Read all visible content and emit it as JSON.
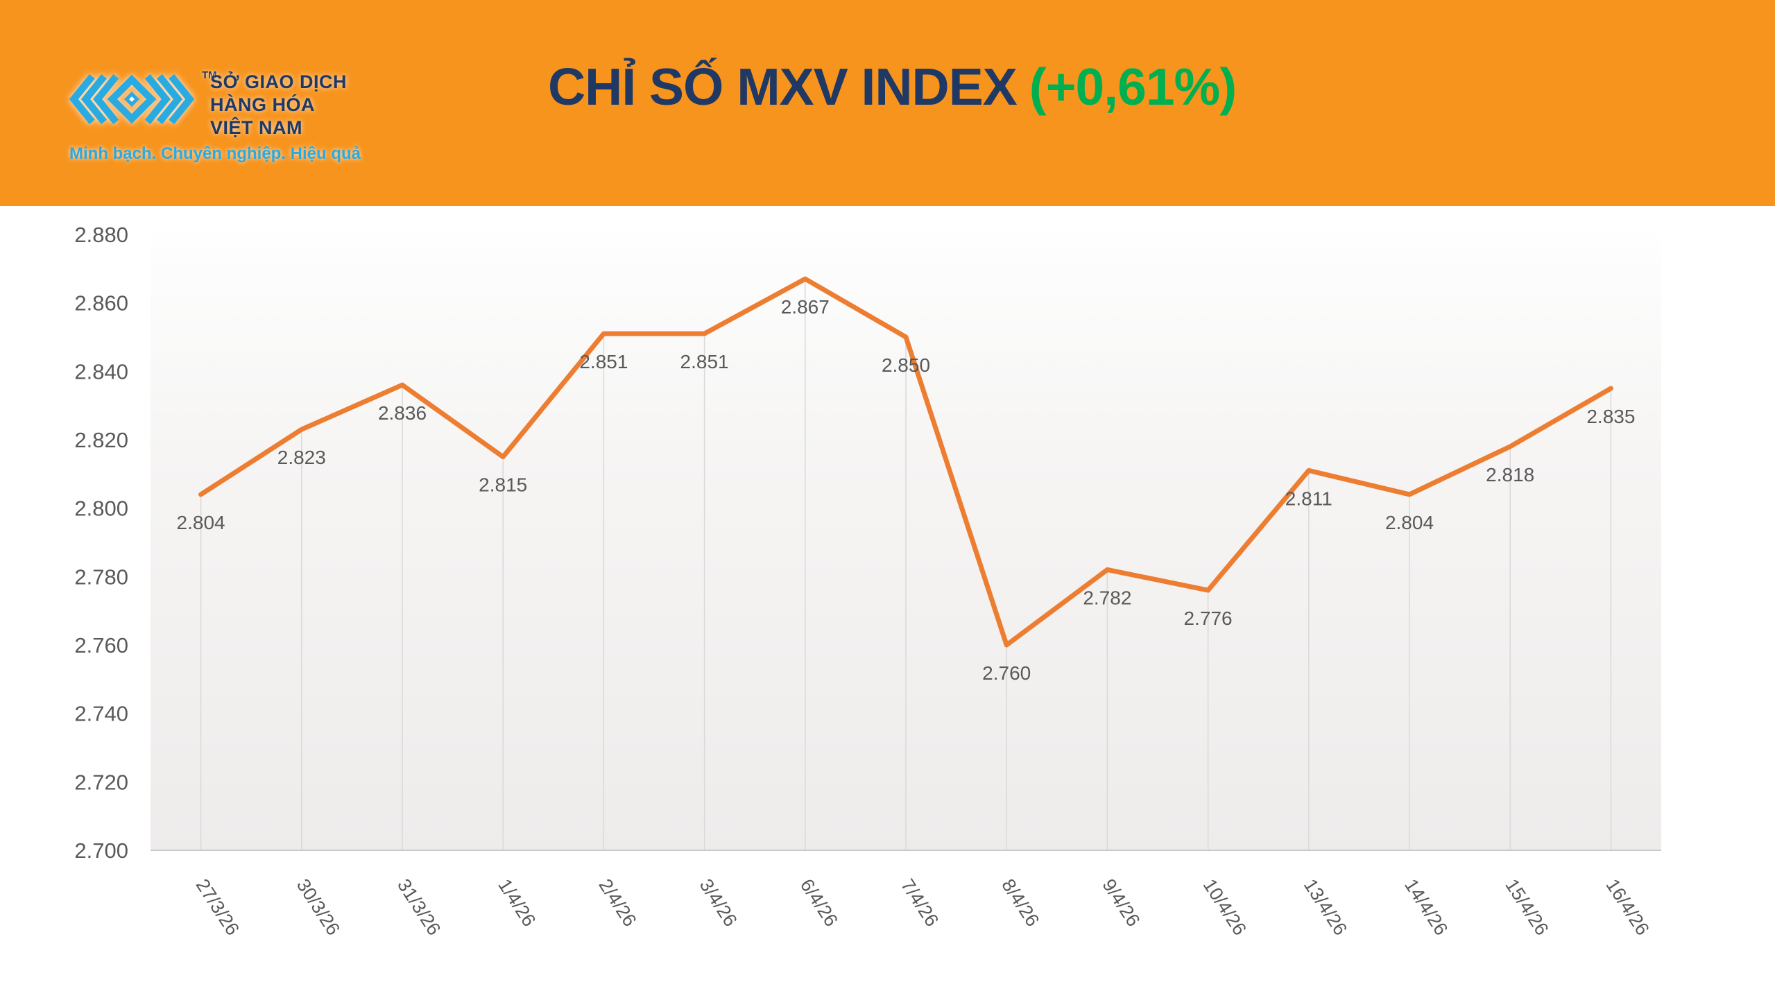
{
  "header": {
    "logo": {
      "tm": "TM",
      "company_lines": [
        "SỞ GIAO DỊCH",
        "HÀNG HÓA",
        "VIỆT NAM"
      ],
      "tagline": "Minh bạch. Chuyên nghiệp. Hiệu quả"
    },
    "title": {
      "main": "CHỈ SỐ MXV INDEX",
      "change": "(+0,61%)"
    },
    "colors": {
      "banner": "#F7941E",
      "title_navy": "#1F3864",
      "change_green": "#00B050",
      "logo_blue": "#29ABE2"
    }
  },
  "chart_data": {
    "type": "line",
    "title": "CHỈ SỐ MXV INDEX (+0,61%)",
    "categories": [
      "27/3/26",
      "30/3/26",
      "31/3/26",
      "1/4/26",
      "2/4/26",
      "3/4/26",
      "6/4/26",
      "7/4/26",
      "8/4/26",
      "9/4/26",
      "10/4/26",
      "13/4/26",
      "14/4/26",
      "15/4/26",
      "16/4/26"
    ],
    "values": [
      2804,
      2823,
      2836,
      2815,
      2851,
      2851,
      2867,
      2850,
      2760,
      2782,
      2776,
      2811,
      2804,
      2818,
      2835
    ],
    "point_labels": [
      "2.804",
      "2.823",
      "2.836",
      "2.815",
      "2.851",
      "2.851",
      "2.867",
      "2.850",
      "2.760",
      "2.782",
      "2.776",
      "2.811",
      "2.804",
      "2.818",
      "2.835"
    ],
    "ytick_labels": [
      "2.700",
      "2.720",
      "2.740",
      "2.760",
      "2.780",
      "2.800",
      "2.820",
      "2.840",
      "2.860",
      "2.880"
    ],
    "ylim": [
      2700,
      2880
    ],
    "ytick_step": 20,
    "xlabel": "",
    "ylabel": "",
    "legend": "none",
    "grid": "drop-lines",
    "line_color": "#ED7D31",
    "label_color": "#595959",
    "tick_color": "#595959",
    "dropline_color": "#D9D9D9",
    "axis_color": "#C9C9C9"
  }
}
